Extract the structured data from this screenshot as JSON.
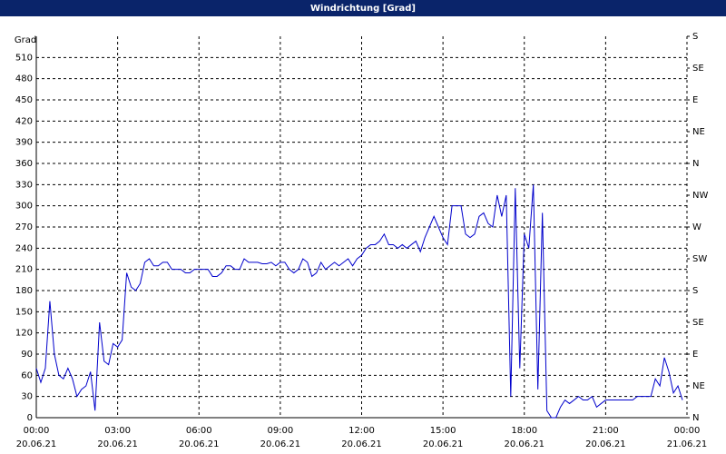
{
  "chart_data": {
    "type": "line",
    "title": "Windrichtung [Grad]",
    "y_label": "Grad",
    "x": [
      0,
      10,
      20,
      30,
      40,
      50,
      60,
      70,
      80,
      90,
      100,
      110,
      120,
      130,
      140,
      150,
      160,
      170,
      180,
      190,
      200,
      210,
      220,
      230,
      240,
      250,
      260,
      270,
      280,
      290,
      300,
      310,
      320,
      330,
      340,
      350,
      360,
      370,
      380,
      390,
      400,
      410,
      420,
      430,
      440,
      450,
      460,
      470,
      480,
      490,
      500,
      510,
      520,
      530,
      540,
      550,
      560,
      570,
      580,
      590,
      600,
      610,
      620,
      630,
      640,
      650,
      660,
      670,
      680,
      690,
      700,
      710,
      720,
      730,
      740,
      750,
      760,
      770,
      780,
      790,
      800,
      810,
      820,
      830,
      840,
      850,
      860,
      870,
      880,
      890,
      900,
      910,
      920,
      930,
      940,
      950,
      960,
      970,
      980,
      990,
      1000,
      1010,
      1020,
      1030,
      1040,
      1050,
      1060,
      1070,
      1080,
      1090,
      1100,
      1110,
      1120,
      1130,
      1140,
      1150,
      1160,
      1170,
      1180,
      1190,
      1200,
      1210,
      1220,
      1230,
      1240,
      1250,
      1260,
      1270,
      1280,
      1290,
      1300,
      1310,
      1320,
      1330,
      1340,
      1350,
      1360,
      1370,
      1380,
      1390,
      1400,
      1410,
      1420,
      1430
    ],
    "series": [
      {
        "name": "Windrichtung",
        "color": "#0000cc",
        "values": [
          70,
          50,
          70,
          165,
          90,
          60,
          55,
          70,
          55,
          30,
          40,
          45,
          65,
          10,
          135,
          80,
          75,
          105,
          100,
          110,
          205,
          185,
          180,
          190,
          220,
          225,
          215,
          215,
          220,
          220,
          210,
          210,
          210,
          205,
          205,
          210,
          210,
          210,
          210,
          200,
          200,
          205,
          215,
          215,
          210,
          210,
          225,
          220,
          220,
          220,
          218,
          218,
          220,
          215,
          220,
          220,
          210,
          205,
          210,
          225,
          220,
          200,
          205,
          220,
          210,
          215,
          220,
          215,
          220,
          225,
          215,
          225,
          230,
          240,
          245,
          245,
          250,
          260,
          245,
          245,
          240,
          245,
          240,
          245,
          250,
          235,
          255,
          270,
          285,
          270,
          255,
          245,
          300,
          300,
          300,
          260,
          255,
          260,
          285,
          290,
          275,
          270,
          315,
          285,
          315,
          30,
          325,
          70,
          260,
          240,
          330,
          40,
          290,
          10,
          0,
          0,
          15,
          25,
          20,
          25,
          30,
          25,
          25,
          30,
          15,
          20,
          25,
          25,
          25,
          25,
          25,
          25,
          25,
          30,
          30,
          30,
          30,
          55,
          45,
          85,
          65,
          35,
          45,
          25
        ]
      }
    ],
    "xlim": [
      0,
      1440
    ],
    "xticks": [
      {
        "value": 0,
        "label": "00:00"
      },
      {
        "value": 180,
        "label": "03:00"
      },
      {
        "value": 360,
        "label": "06:00"
      },
      {
        "value": 540,
        "label": "09:00"
      },
      {
        "value": 720,
        "label": "12:00"
      },
      {
        "value": 900,
        "label": "15:00"
      },
      {
        "value": 1080,
        "label": "18:00"
      },
      {
        "value": 1260,
        "label": "21:00"
      },
      {
        "value": 1440,
        "label": "00:00"
      }
    ],
    "xtick_dates": [
      "20.06.21",
      "20.06.21",
      "20.06.21",
      "20.06.21",
      "20.06.21",
      "20.06.21",
      "20.06.21",
      "20.06.21",
      "21.06.21"
    ],
    "ylim": [
      0,
      540
    ],
    "yticks": [
      0,
      30,
      60,
      90,
      120,
      150,
      180,
      210,
      240,
      270,
      300,
      330,
      360,
      390,
      420,
      450,
      480,
      510
    ],
    "y2lim": [
      0,
      540
    ],
    "y2ticks": [
      {
        "value": 0,
        "label": "N"
      },
      {
        "value": 45,
        "label": "NE"
      },
      {
        "value": 90,
        "label": "E"
      },
      {
        "value": 135,
        "label": "SE"
      },
      {
        "value": 180,
        "label": "S"
      },
      {
        "value": 225,
        "label": "SW"
      },
      {
        "value": 270,
        "label": "W"
      },
      {
        "value": 315,
        "label": "NW"
      },
      {
        "value": 360,
        "label": "N"
      },
      {
        "value": 405,
        "label": "NE"
      },
      {
        "value": 450,
        "label": "E"
      },
      {
        "value": 495,
        "label": "SE"
      },
      {
        "value": 540,
        "label": "S"
      }
    ],
    "grid": true
  }
}
